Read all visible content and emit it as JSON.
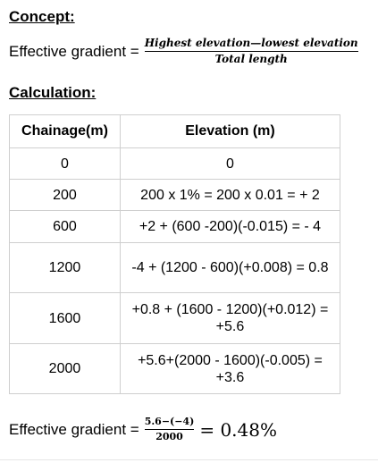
{
  "concept": {
    "heading": "Concept:",
    "lhs": "Effective gradient =",
    "numerator": "Highest elevation—lowest elevation",
    "denominator": "Total length"
  },
  "calculation": {
    "heading": "Calculation:",
    "table": {
      "headers": [
        "Chainage(m)",
        "Elevation (m)"
      ],
      "rows": [
        {
          "chainage": "0",
          "elevation": "0"
        },
        {
          "chainage": "200",
          "elevation": "200 x 1% = 200 x 0.01 = + 2"
        },
        {
          "chainage": "600",
          "elevation": "+2 + (600 -200)(-0.015) = - 4"
        },
        {
          "chainage": "1200",
          "elevation": "-4 + (1200 - 600)(+0.008) = 0.8"
        },
        {
          "chainage": "1600",
          "elevation": "+0.8 + (1600 - 1200)(+0.012) = +5.6"
        },
        {
          "chainage": "2000",
          "elevation": "+5.6+(2000 - 1600)(-0.005) = +3.6"
        }
      ]
    }
  },
  "result": {
    "lhs": "Effective gradient =",
    "numerator": "5.6−(−4)",
    "denominator": "2000",
    "value": "= 0.48%"
  }
}
